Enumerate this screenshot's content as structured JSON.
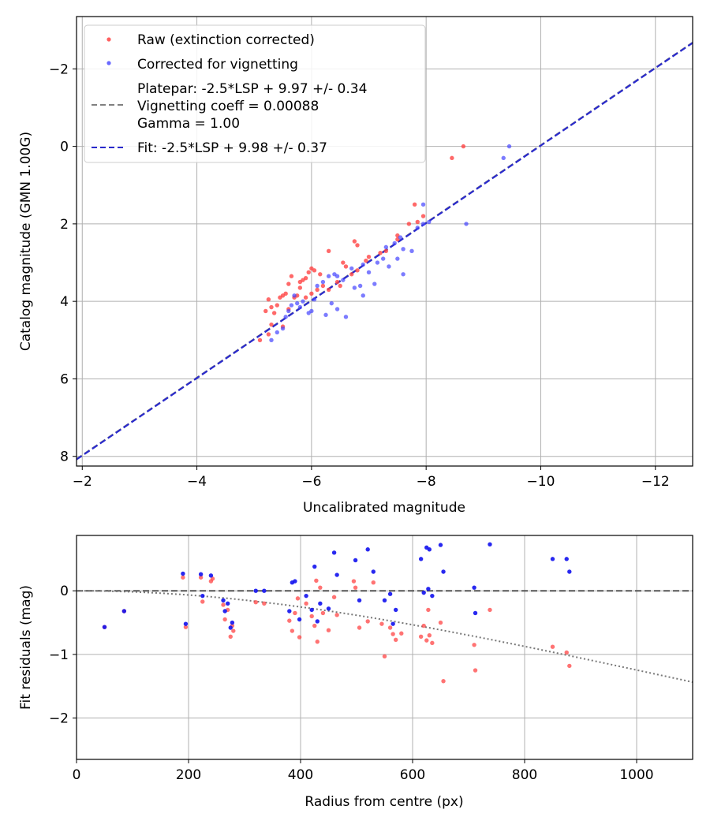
{
  "chart_data": [
    {
      "type": "scatter",
      "xlabel": "Uncalibrated magnitude",
      "ylabel": "Catalog magnitude (GMN 1.00G)",
      "xlim": [
        -1.9,
        -12.65
      ],
      "ylim": [
        8.25,
        -3.35
      ],
      "xticks": [
        -2,
        -4,
        -6,
        -8,
        -10,
        -12
      ],
      "yticks": [
        -2,
        0,
        2,
        4,
        6,
        8
      ],
      "grid": true,
      "legend": {
        "position": "top-left",
        "entries": [
          {
            "label": "Raw (extinction corrected)",
            "marker": "dot",
            "color": "#ff4444"
          },
          {
            "label": "Corrected for vignetting",
            "marker": "dot",
            "color": "#4444ff"
          },
          {
            "label": "Platepar: -2.5*LSP + 9.97 +/- 0.34",
            "label2": "Vignetting coeff = 0.00088",
            "label3": "Gamma = 1.00",
            "marker": "dash",
            "color": "#808080"
          },
          {
            "label": "Fit: -2.5*LSP + 9.98 +/- 0.37",
            "marker": "dash",
            "color": "#2a2acd"
          }
        ]
      },
      "lines": [
        {
          "name": "Platepar",
          "x": [
            -1.9,
            -12.65
          ],
          "y": [
            8.07,
            -2.68
          ],
          "color": "#808080"
        },
        {
          "name": "Fit",
          "x": [
            -1.9,
            -12.65
          ],
          "y": [
            8.08,
            -2.67
          ],
          "color": "#2a2acd"
        }
      ],
      "series": [
        {
          "name": "Raw (extinction corrected)",
          "color": "#ff4444",
          "x": [
            -8.65,
            -8.45,
            -7.8,
            -7.95,
            -7.85,
            -7.7,
            -7.5,
            -7.5,
            -7.3,
            -7.2,
            -7.0,
            -6.95,
            -6.8,
            -6.75,
            -6.6,
            -6.7,
            -6.8,
            -6.55,
            -6.3,
            -6.45,
            -6.5,
            -6.3,
            -6.15,
            -6.05,
            -6.0,
            -5.95,
            -5.9,
            -5.85,
            -5.8,
            -5.8,
            -5.75,
            -5.7,
            -5.65,
            -5.6,
            -5.55,
            -5.5,
            -5.45,
            -5.4,
            -5.35,
            -5.3,
            -5.25,
            -5.2,
            -5.1,
            -5.25,
            -5.3,
            -6.0,
            -6.1,
            -6.2,
            -5.9,
            -5.6,
            -5.5
          ],
          "y": [
            0.0,
            0.3,
            1.5,
            1.8,
            1.95,
            2.0,
            2.3,
            2.4,
            2.7,
            2.75,
            2.85,
            2.95,
            2.55,
            2.45,
            3.1,
            3.3,
            3.2,
            3.0,
            2.7,
            3.5,
            3.6,
            3.7,
            3.3,
            3.2,
            3.15,
            3.25,
            3.4,
            3.45,
            3.5,
            3.65,
            3.85,
            3.9,
            3.35,
            3.55,
            3.8,
            3.85,
            3.9,
            4.1,
            4.3,
            4.15,
            3.95,
            4.25,
            5.0,
            4.85,
            4.6,
            3.8,
            3.7,
            3.6,
            3.9,
            4.2,
            4.65
          ]
        },
        {
          "name": "Corrected for vignetting",
          "color": "#4444ff",
          "x": [
            -9.45,
            -9.35,
            -8.7,
            -8.05,
            -7.95,
            -7.95,
            -7.85,
            -7.75,
            -7.6,
            -7.55,
            -7.45,
            -7.5,
            -7.3,
            -7.25,
            -7.15,
            -7.0,
            -6.9,
            -6.85,
            -6.75,
            -6.7,
            -6.55,
            -6.45,
            -6.4,
            -6.3,
            -6.2,
            -6.1,
            -6.05,
            -6.0,
            -5.95,
            -5.85,
            -5.8,
            -5.75,
            -5.7,
            -5.65,
            -5.6,
            -5.55,
            -5.5,
            -5.4,
            -5.3,
            -6.25,
            -6.35,
            -6.45,
            -6.6,
            -6.9,
            -7.1,
            -7.35,
            -7.6
          ],
          "y": [
            0.0,
            0.3,
            2.0,
            1.95,
            1.5,
            2.0,
            2.1,
            2.7,
            2.65,
            2.35,
            2.5,
            2.9,
            2.6,
            2.9,
            3.0,
            3.25,
            3.05,
            3.6,
            3.65,
            3.15,
            3.45,
            3.35,
            3.3,
            3.35,
            3.5,
            3.6,
            3.95,
            4.25,
            4.3,
            4.0,
            4.15,
            4.05,
            3.85,
            4.1,
            4.25,
            4.4,
            4.7,
            4.8,
            5.0,
            4.35,
            4.05,
            4.2,
            4.4,
            3.85,
            3.55,
            3.1,
            3.3
          ]
        }
      ]
    },
    {
      "type": "scatter",
      "xlabel": "Radius from centre (px)",
      "ylabel": "Fit residuals (mag)",
      "xlim": [
        0,
        1100
      ],
      "ylim": [
        -2.65,
        0.87
      ],
      "xticks": [
        0,
        200,
        400,
        600,
        800,
        1000
      ],
      "yticks": [
        -2,
        -1,
        0
      ],
      "grid": true,
      "lines": [
        {
          "name": "zero",
          "style": "dashed",
          "color": "#555555",
          "x": [
            0,
            1100
          ],
          "y": [
            0,
            0
          ]
        },
        {
          "name": "vignetting model",
          "style": "dotted",
          "color": "#777777",
          "function": "-2.5*log10(cos(atan(0.00088*r))^4)",
          "vignetting_coeff": 0.00088
        }
      ],
      "series": [
        {
          "name": "Raw (extinction corrected)",
          "color": "#ff4444",
          "x": [
            50,
            85,
            190,
            195,
            222,
            225,
            240,
            243,
            262,
            265,
            270,
            275,
            278,
            280,
            320,
            335,
            380,
            385,
            390,
            395,
            398,
            410,
            420,
            425,
            428,
            430,
            435,
            440,
            450,
            460,
            465,
            495,
            498,
            505,
            520,
            530,
            545,
            550,
            560,
            565,
            570,
            580,
            615,
            620,
            625,
            628,
            630,
            635,
            650,
            655,
            710,
            712,
            738,
            850,
            875,
            880
          ],
          "y": [
            -0.57,
            -0.32,
            0.21,
            -0.57,
            0.21,
            -0.17,
            0.15,
            0.19,
            -0.22,
            -0.45,
            -0.3,
            -0.72,
            -0.55,
            -0.63,
            -0.18,
            -0.2,
            -0.47,
            -0.63,
            -0.35,
            -0.12,
            -0.73,
            -0.2,
            -0.4,
            -0.55,
            0.16,
            -0.8,
            0.05,
            -0.35,
            -0.62,
            -0.1,
            -0.38,
            0.15,
            0.05,
            -0.58,
            -0.48,
            0.13,
            -0.52,
            -1.03,
            -0.58,
            -0.68,
            -0.77,
            -0.67,
            -0.72,
            -0.55,
            -0.78,
            -0.3,
            -0.7,
            -0.82,
            -0.5,
            -1.42,
            -0.85,
            -1.25,
            -0.3,
            -0.88,
            -0.97,
            -1.18
          ]
        },
        {
          "name": "Corrected for vignetting",
          "color": "#1111ee",
          "x": [
            50,
            85,
            190,
            195,
            222,
            225,
            240,
            262,
            265,
            270,
            275,
            278,
            320,
            335,
            380,
            385,
            390,
            398,
            410,
            420,
            425,
            430,
            435,
            450,
            460,
            465,
            498,
            505,
            520,
            530,
            550,
            560,
            565,
            570,
            615,
            620,
            625,
            628,
            630,
            635,
            650,
            655,
            710,
            712,
            738,
            850,
            875,
            880
          ],
          "y": [
            -0.57,
            -0.32,
            0.27,
            -0.52,
            0.26,
            -0.08,
            0.24,
            -0.15,
            -0.32,
            -0.2,
            -0.58,
            -0.5,
            0.0,
            0.0,
            -0.32,
            0.13,
            0.15,
            -0.45,
            -0.08,
            -0.3,
            0.38,
            -0.48,
            -0.2,
            -0.28,
            0.6,
            0.25,
            0.48,
            -0.15,
            0.65,
            0.3,
            -0.15,
            -0.05,
            -0.52,
            -0.3,
            0.5,
            -0.03,
            0.68,
            0.03,
            0.65,
            -0.08,
            0.72,
            0.3,
            0.05,
            -0.35,
            0.73,
            0.5,
            0.5,
            0.3
          ]
        }
      ]
    }
  ]
}
